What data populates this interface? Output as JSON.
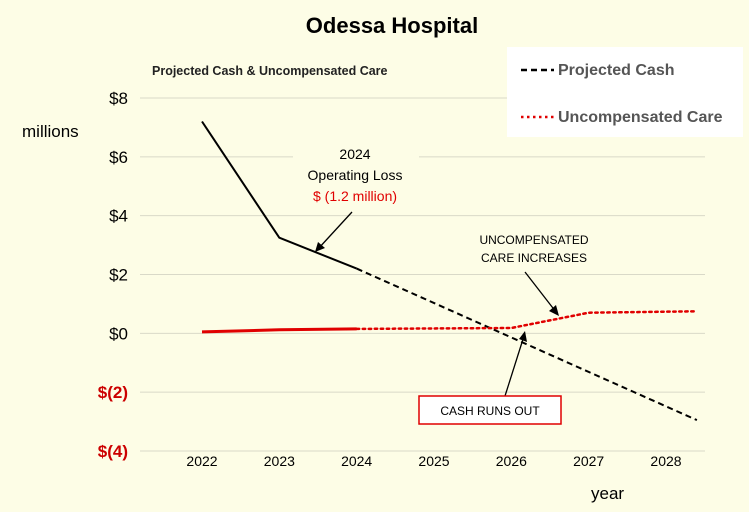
{
  "colors": {
    "background": "#fdfde6",
    "cash": "#000000",
    "care": "#e00000",
    "negative_tick": "#cc0000",
    "grid": "#d9d9c8",
    "legend_text": "#555555"
  },
  "chart_data": {
    "type": "line",
    "title": "Odessa Hospital",
    "subtitle": "Projected Cash & Uncompensated Care",
    "xlabel": "year",
    "ylabel": "millions",
    "x": [
      2022,
      2023,
      2024,
      2025,
      2026,
      2027,
      2028
    ],
    "ylim": [
      -4,
      8
    ],
    "y_ticks": [
      {
        "value": 8,
        "label": "$8",
        "negative": false
      },
      {
        "value": 6,
        "label": "$6",
        "negative": false
      },
      {
        "value": 4,
        "label": "$4",
        "negative": false
      },
      {
        "value": 2,
        "label": "$2",
        "negative": false
      },
      {
        "value": 0,
        "label": "$0",
        "negative": false
      },
      {
        "value": -2,
        "label": "$(2)",
        "negative": true
      },
      {
        "value": -4,
        "label": "$(4)",
        "negative": true
      }
    ],
    "x_ticks": [
      "2022",
      "2023",
      "2024",
      "2025",
      "2026",
      "2027",
      "2028"
    ],
    "grid": true,
    "legend": {
      "position": "top-right",
      "entries": [
        "Projected Cash",
        "Uncompensated Care"
      ]
    },
    "series": [
      {
        "name": "Projected Cash",
        "actual": [
          [
            2022,
            7.2
          ],
          [
            2023,
            3.25
          ],
          [
            2024,
            2.2
          ]
        ],
        "projected": [
          [
            2024,
            2.2
          ],
          [
            2028.4,
            -2.95
          ]
        ]
      },
      {
        "name": "Uncompensated Care",
        "actual": [
          [
            2022,
            0.05
          ],
          [
            2023,
            0.12
          ],
          [
            2024,
            0.15
          ]
        ],
        "projected": [
          [
            2024,
            0.15
          ],
          [
            2026,
            0.18
          ],
          [
            2027,
            0.7
          ],
          [
            2028.4,
            0.75
          ]
        ]
      }
    ],
    "annotations": {
      "operating_loss": {
        "line1": "2024",
        "line2": "Operating Loss",
        "line3": "$ (1.2 million)"
      },
      "uncompensated_care": {
        "line1": "UNCOMPENSATED",
        "line2": "CARE INCREASES"
      },
      "cash_runs_out": "CASH RUNS OUT"
    }
  }
}
